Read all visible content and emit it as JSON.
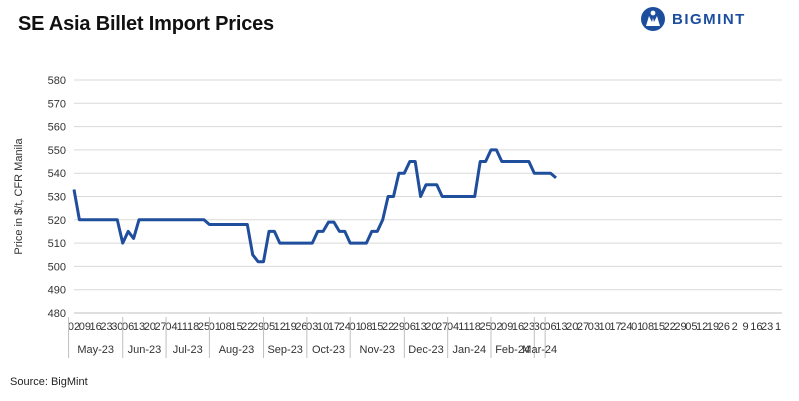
{
  "title": "SE Asia Billet Import Prices",
  "logo": {
    "text": "BIGMINT",
    "icon": "bigmint-logo-icon",
    "color": "#1d4e9e"
  },
  "source": "Source: BigMint",
  "chart_data": {
    "type": "line",
    "title": "SE Asia Billet Import Prices",
    "ylabel": "Price in $/t, CFR Manila",
    "xlabel": "",
    "ylim": [
      480,
      580
    ],
    "yticks": [
      480,
      490,
      500,
      510,
      520,
      530,
      540,
      550,
      560,
      570,
      580
    ],
    "grid": true,
    "line_color": "#1f4e9c",
    "tick_labels": [
      "02",
      "09",
      "16",
      "23",
      "30",
      "06",
      "13",
      "20",
      "27",
      "04",
      "11",
      "18",
      "25",
      "01",
      "08",
      "15",
      "22",
      "29",
      "05",
      "12",
      "19",
      "26",
      "03",
      "10",
      "17",
      "24",
      "01",
      "08",
      "15",
      "22",
      "29",
      "06",
      "13",
      "20",
      "27",
      "04",
      "11",
      "18",
      "25",
      "02",
      "09",
      "16",
      "23",
      "30",
      "06",
      "13",
      "20",
      "27",
      "03",
      "10",
      "17",
      "24",
      "01",
      "08",
      "15",
      "22",
      "29",
      "05",
      "12",
      "19",
      "26",
      "2",
      "9",
      "16",
      "23",
      "1"
    ],
    "months": [
      {
        "label": "May-23",
        "start": 0,
        "end": 4
      },
      {
        "label": "Jun-23",
        "start": 5,
        "end": 8
      },
      {
        "label": "Jul-23",
        "start": 9,
        "end": 12
      },
      {
        "label": "Aug-23",
        "start": 13,
        "end": 17
      },
      {
        "label": "Sep-23",
        "start": 18,
        "end": 21
      },
      {
        "label": "Oct-23",
        "start": 22,
        "end": 25
      },
      {
        "label": "Nov-23",
        "start": 26,
        "end": 30
      },
      {
        "label": "Dec-23",
        "start": 31,
        "end": 34
      },
      {
        "label": "Jan-24",
        "start": 35,
        "end": 38
      },
      {
        "label": "Feb-24",
        "start": 39,
        "end": 42
      },
      {
        "label": "Mar-24",
        "start": 43,
        "end": 43
      }
    ],
    "series": [
      {
        "points": [
          [
            0,
            533
          ],
          [
            0.5,
            520
          ],
          [
            1,
            520
          ],
          [
            2,
            520
          ],
          [
            3,
            520
          ],
          [
            4,
            520
          ],
          [
            4.5,
            510
          ],
          [
            5,
            515
          ],
          [
            5.5,
            512
          ],
          [
            6,
            520
          ],
          [
            7,
            520
          ],
          [
            8,
            520
          ],
          [
            9,
            520
          ],
          [
            10,
            520
          ],
          [
            11,
            520
          ],
          [
            12,
            520
          ],
          [
            12.5,
            518
          ],
          [
            13,
            518
          ],
          [
            14,
            518
          ],
          [
            15,
            518
          ],
          [
            16,
            518
          ],
          [
            16.5,
            505
          ],
          [
            17,
            502
          ],
          [
            17.5,
            502
          ],
          [
            18,
            515
          ],
          [
            18.5,
            515
          ],
          [
            19,
            510
          ],
          [
            20,
            510
          ],
          [
            21,
            510
          ],
          [
            22,
            510
          ],
          [
            22.5,
            515
          ],
          [
            23,
            515
          ],
          [
            23.5,
            519
          ],
          [
            24,
            519
          ],
          [
            24.5,
            515
          ],
          [
            25,
            515
          ],
          [
            25.5,
            510
          ],
          [
            26,
            510
          ],
          [
            27,
            510
          ],
          [
            27.5,
            515
          ],
          [
            28,
            515
          ],
          [
            28.5,
            520
          ],
          [
            29,
            530
          ],
          [
            29.5,
            530
          ],
          [
            30,
            540
          ],
          [
            30.5,
            540
          ],
          [
            31,
            545
          ],
          [
            31.5,
            545
          ],
          [
            32,
            530
          ],
          [
            32.5,
            535
          ],
          [
            33,
            535
          ],
          [
            33.5,
            535
          ],
          [
            34,
            530
          ],
          [
            35,
            530
          ],
          [
            36,
            530
          ],
          [
            37,
            530
          ],
          [
            37.5,
            545
          ],
          [
            38,
            545
          ],
          [
            38.5,
            550
          ],
          [
            39,
            550
          ],
          [
            39.5,
            545
          ],
          [
            40,
            545
          ],
          [
            41,
            545
          ],
          [
            42,
            545
          ],
          [
            42.5,
            540
          ],
          [
            43,
            540
          ],
          [
            44,
            540
          ],
          [
            44.5,
            538
          ]
        ]
      }
    ]
  }
}
